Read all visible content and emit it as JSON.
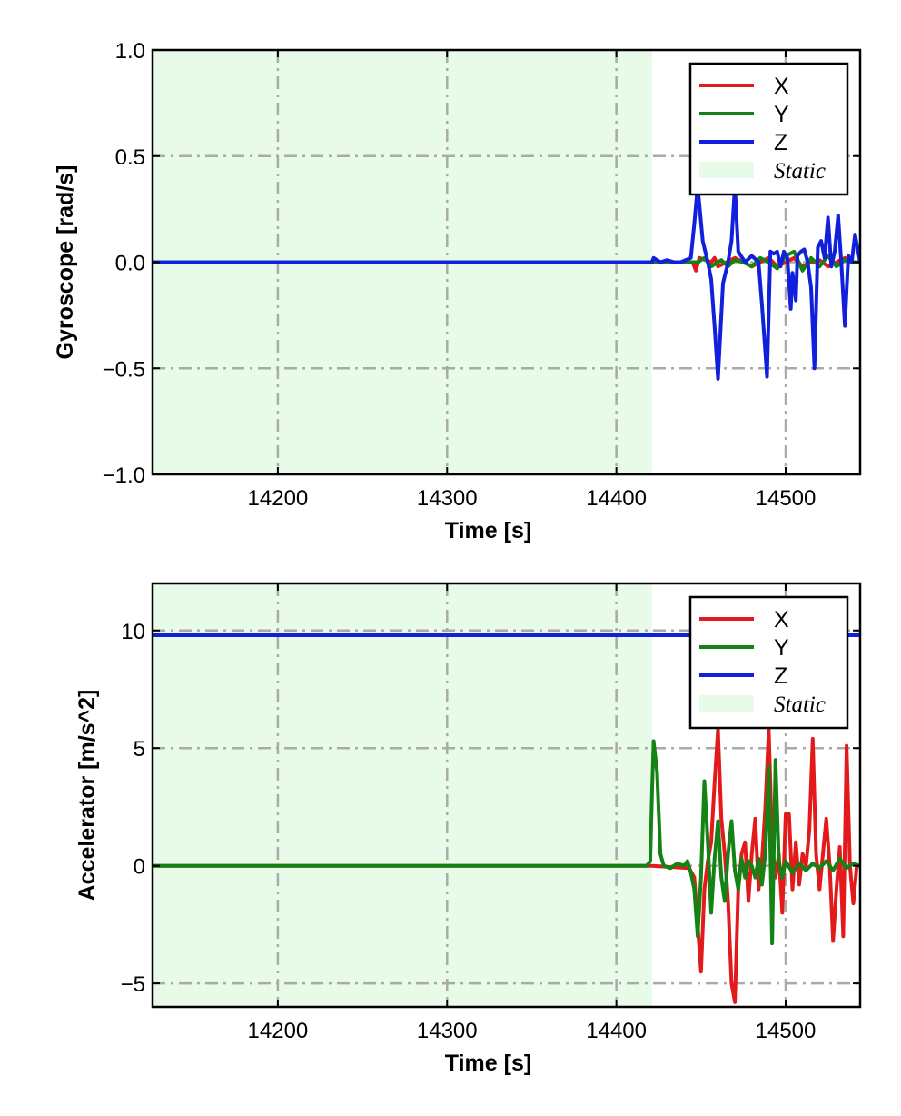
{
  "chart_data": [
    {
      "type": "line",
      "ylabel": "Gyroscope [rad/s]",
      "xlabel": "Time [s]",
      "xlim": [
        14126,
        14544
      ],
      "ylim": [
        -1.0,
        1.0
      ],
      "xticks": [
        14200,
        14300,
        14400,
        14500
      ],
      "xtick_labels": [
        "14200",
        "14300",
        "14400",
        "14500"
      ],
      "yticks": [
        -1.0,
        -0.5,
        0.0,
        0.5,
        1.0
      ],
      "ytick_labels": [
        "−1.0",
        "−0.5",
        "0.0",
        "0.5",
        "1.0"
      ],
      "grid": true,
      "legend": "top-right",
      "static_region": {
        "label": "Static",
        "x": [
          14126,
          14421
        ],
        "color": "#e8fbe8"
      },
      "series": [
        {
          "name": "X",
          "color": "#e31a1c",
          "x": [
            14126,
            14421,
            14445,
            14447,
            14449,
            14456,
            14458,
            14460,
            14465,
            14470,
            14475,
            14480,
            14485,
            14490,
            14495,
            14500,
            14505,
            14510,
            14515,
            14520,
            14525,
            14530,
            14535,
            14540,
            14544
          ],
          "y": [
            0.0,
            0.0,
            0.0,
            -0.04,
            0.02,
            0.0,
            0.02,
            -0.02,
            0.0,
            0.02,
            0.0,
            -0.02,
            0.0,
            0.02,
            -0.02,
            0.0,
            0.02,
            -0.02,
            0.0,
            0.01,
            -0.02,
            0.0,
            0.02,
            0.0,
            0.0
          ]
        },
        {
          "name": "Y",
          "color": "#148214",
          "x": [
            14126,
            14421,
            14448,
            14452,
            14456,
            14462,
            14466,
            14470,
            14475,
            14480,
            14485,
            14490,
            14495,
            14500,
            14505,
            14510,
            14515,
            14520,
            14525,
            14530,
            14535,
            14540,
            14544
          ],
          "y": [
            0.0,
            0.0,
            0.0,
            0.02,
            -0.02,
            0.01,
            -0.02,
            0.01,
            0.0,
            -0.02,
            0.02,
            0.0,
            -0.03,
            0.03,
            0.05,
            -0.04,
            0.02,
            -0.02,
            0.03,
            -0.02,
            0.01,
            0.0,
            0.0
          ]
        },
        {
          "name": "Z",
          "color": "#1020dc",
          "x": [
            14126,
            14421,
            14422,
            14426,
            14430,
            14434,
            14438,
            14444,
            14446,
            14448,
            14451,
            14454,
            14456,
            14458,
            14460,
            14463,
            14466,
            14468,
            14470,
            14472,
            14476,
            14480,
            14484,
            14486,
            14489,
            14491,
            14493,
            14495,
            14497,
            14499,
            14501,
            14503,
            14504,
            14506,
            14507,
            14509,
            14511,
            14513,
            14515,
            14517,
            14519,
            14521,
            14523,
            14525,
            14527,
            14529,
            14531,
            14533,
            14535,
            14537,
            14539,
            14541,
            14544
          ],
          "y": [
            0.0,
            0.0,
            0.02,
            0.0,
            0.01,
            0.0,
            0.0,
            0.02,
            0.18,
            0.36,
            0.1,
            0.0,
            -0.08,
            -0.3,
            -0.55,
            -0.1,
            0.0,
            0.1,
            0.36,
            0.05,
            0.0,
            0.03,
            0.0,
            -0.2,
            -0.54,
            0.05,
            0.04,
            0.05,
            -0.02,
            0.05,
            0.02,
            -0.22,
            -0.05,
            -0.18,
            0.03,
            0.05,
            0.06,
            0.0,
            -0.12,
            -0.5,
            0.07,
            0.1,
            0.02,
            0.21,
            -0.02,
            0.05,
            0.22,
            -0.02,
            -0.3,
            0.03,
            0.0,
            0.13,
            0.0
          ]
        }
      ]
    },
    {
      "type": "line",
      "ylabel": "Accelerator [m/s^2]",
      "xlabel": "Time [s]",
      "xlim": [
        14126,
        14544
      ],
      "ylim": [
        -6.0,
        12.0
      ],
      "xticks": [
        14200,
        14300,
        14400,
        14500
      ],
      "xtick_labels": [
        "14200",
        "14300",
        "14400",
        "14500"
      ],
      "yticks": [
        -5,
        0,
        5,
        10
      ],
      "ytick_labels": [
        "−5",
        "0",
        "5",
        "10"
      ],
      "grid": true,
      "legend": "top-right",
      "static_region": {
        "label": "Static",
        "x": [
          14126,
          14421
        ],
        "color": "#e8fbe8"
      },
      "series": [
        {
          "name": "X",
          "color": "#e31a1c",
          "x": [
            14126,
            14421,
            14443,
            14446,
            14448,
            14450,
            14452,
            14454,
            14456,
            14458,
            14460,
            14462,
            14464,
            14466,
            14468,
            14470,
            14472,
            14474,
            14476,
            14478,
            14480,
            14482,
            14484,
            14486,
            14488,
            14490,
            14492,
            14494,
            14496,
            14498,
            14500,
            14502,
            14504,
            14506,
            14508,
            14510,
            14512,
            14514,
            14516,
            14518,
            14520,
            14522,
            14524,
            14526,
            14528,
            14530,
            14532,
            14534,
            14536,
            14538,
            14540,
            14542,
            14544
          ],
          "y": [
            0.0,
            0.0,
            -0.1,
            -0.5,
            -2.5,
            -4.5,
            -1.0,
            0.2,
            1.0,
            3.5,
            5.8,
            2.0,
            0.5,
            -1.5,
            -5.0,
            -5.8,
            -1.0,
            0.5,
            1.0,
            -1.5,
            0.5,
            2.0,
            -1.0,
            0.2,
            2.5,
            5.8,
            1.0,
            -0.5,
            0.5,
            -2.0,
            2.2,
            2.2,
            -1.0,
            1.0,
            -0.8,
            0.5,
            0.0,
            1.5,
            5.4,
            0.5,
            -1.0,
            0.5,
            2.0,
            0.0,
            -3.2,
            -1.0,
            0.8,
            -3.0,
            5.1,
            0.0,
            -1.6,
            0.0,
            0.0
          ]
        },
        {
          "name": "Y",
          "color": "#148214",
          "x": [
            14126,
            14418,
            14420,
            14421,
            14422,
            14424,
            14426,
            14428,
            14432,
            14436,
            14440,
            14442,
            14444,
            14446,
            14448,
            14450,
            14452,
            14454,
            14456,
            14458,
            14460,
            14462,
            14464,
            14466,
            14468,
            14470,
            14472,
            14474,
            14476,
            14478,
            14480,
            14482,
            14484,
            14486,
            14488,
            14490,
            14492,
            14494,
            14496,
            14498,
            14500,
            14504,
            14508,
            14512,
            14516,
            14520,
            14524,
            14528,
            14532,
            14536,
            14540,
            14544
          ],
          "y": [
            0.0,
            0.0,
            0.2,
            3.0,
            5.3,
            4.0,
            0.5,
            0.0,
            -0.1,
            0.1,
            0.0,
            0.2,
            -0.3,
            -1.0,
            -3.0,
            -0.5,
            3.6,
            1.0,
            -2.0,
            0.3,
            1.9,
            -0.5,
            -1.5,
            0.5,
            1.9,
            -0.2,
            -1.0,
            0.3,
            -0.5,
            0.2,
            0.0,
            -0.5,
            0.3,
            -0.8,
            0.5,
            4.2,
            -3.3,
            4.5,
            0.2,
            -0.5,
            0.2,
            -0.3,
            0.1,
            -0.2,
            0.1,
            -0.1,
            0.2,
            -0.2,
            0.3,
            -0.1,
            0.1,
            0.0
          ]
        },
        {
          "name": "Z",
          "color": "#1020dc",
          "x": [
            14126,
            14544
          ],
          "y": [
            9.8,
            9.8
          ]
        }
      ]
    }
  ]
}
